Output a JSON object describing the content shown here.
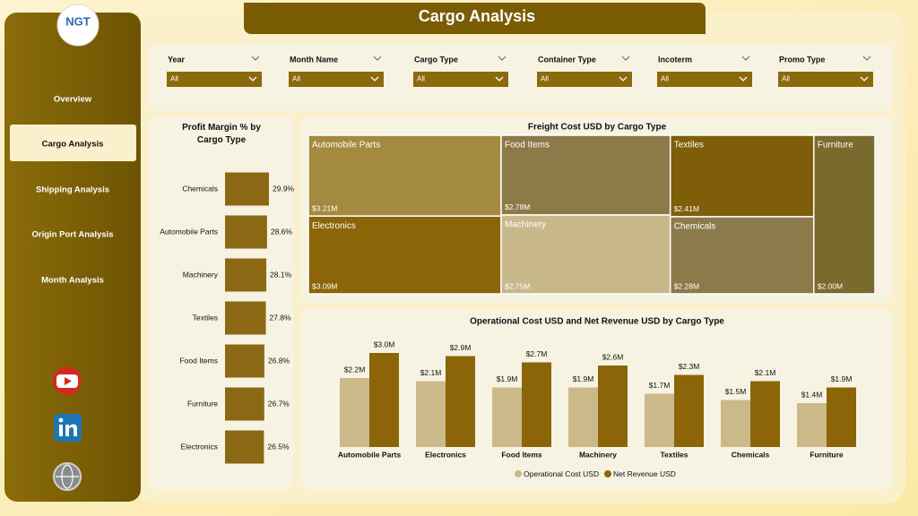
{
  "header": {
    "title": "Cargo Analysis",
    "logo": "NGT"
  },
  "nav": [
    "Overview",
    "Cargo Analysis",
    "Shipping Analysis",
    "Origin Port Analysis",
    "Month Analysis"
  ],
  "filters": [
    {
      "label": "Year",
      "value": "All"
    },
    {
      "label": "Month Name",
      "value": "All"
    },
    {
      "label": "Cargo Type",
      "value": "All"
    },
    {
      "label": "Container Type",
      "value": "All"
    },
    {
      "label": "Incoterm",
      "value": "All"
    },
    {
      "label": "Promo Type",
      "value": "All"
    }
  ],
  "chart_data": [
    {
      "type": "bar",
      "orientation": "horizontal",
      "title": "Profit Margin % by Cargo Type",
      "categories": [
        "Chemicals",
        "Automobile Parts",
        "Machinery",
        "Textiles",
        "Food Items",
        "Furniture",
        "Electronics"
      ],
      "values": [
        29.9,
        28.6,
        28.1,
        27.8,
        26.8,
        26.7,
        26.5
      ],
      "value_labels": [
        "29.9%",
        "28.6%",
        "28.1%",
        "27.8%",
        "26.8%",
        "26.7%",
        "26.5%"
      ],
      "color": "#8b6914"
    },
    {
      "type": "treemap",
      "title": "Freight Cost USD by Cargo Type",
      "categories": [
        "Automobile Parts",
        "Electronics",
        "Food Items",
        "Machinery",
        "Textiles",
        "Chemicals",
        "Furniture"
      ],
      "values": [
        3.21,
        3.09,
        2.78,
        2.75,
        2.41,
        2.28,
        2.0
      ],
      "value_labels": [
        "$3.21M",
        "$3.09M",
        "$2.78M",
        "$2.75M",
        "$2.41M",
        "$2.28M",
        "$2.00M"
      ],
      "colors": [
        "#a38a3e",
        "#8b6508",
        "#8c7a48",
        "#c9b98a",
        "#7e5e08",
        "#8c7a4a",
        "#7b6a2e"
      ]
    },
    {
      "type": "bar",
      "title": "Operational Cost USD and Net Revenue USD by Cargo Type",
      "categories": [
        "Automobile Parts",
        "Electronics",
        "Food Items",
        "Machinery",
        "Textiles",
        "Chemicals",
        "Furniture"
      ],
      "series": [
        {
          "name": "Operational Cost USD",
          "color": "#cbb98a",
          "values": [
            2.2,
            2.1,
            1.9,
            1.9,
            1.7,
            1.5,
            1.4
          ],
          "value_labels": [
            "$2.2M",
            "$2.1M",
            "$1.9M",
            "$1.9M",
            "$1.7M",
            "$1.5M",
            "$1.4M"
          ]
        },
        {
          "name": "Net Revenue USD",
          "color": "#8b6508",
          "values": [
            3.0,
            2.9,
            2.7,
            2.6,
            2.3,
            2.1,
            1.9
          ],
          "value_labels": [
            "$3.0M",
            "$2.9M",
            "$2.7M",
            "$2.6M",
            "$2.3M",
            "$2.1M",
            "$1.9M"
          ]
        }
      ]
    }
  ]
}
